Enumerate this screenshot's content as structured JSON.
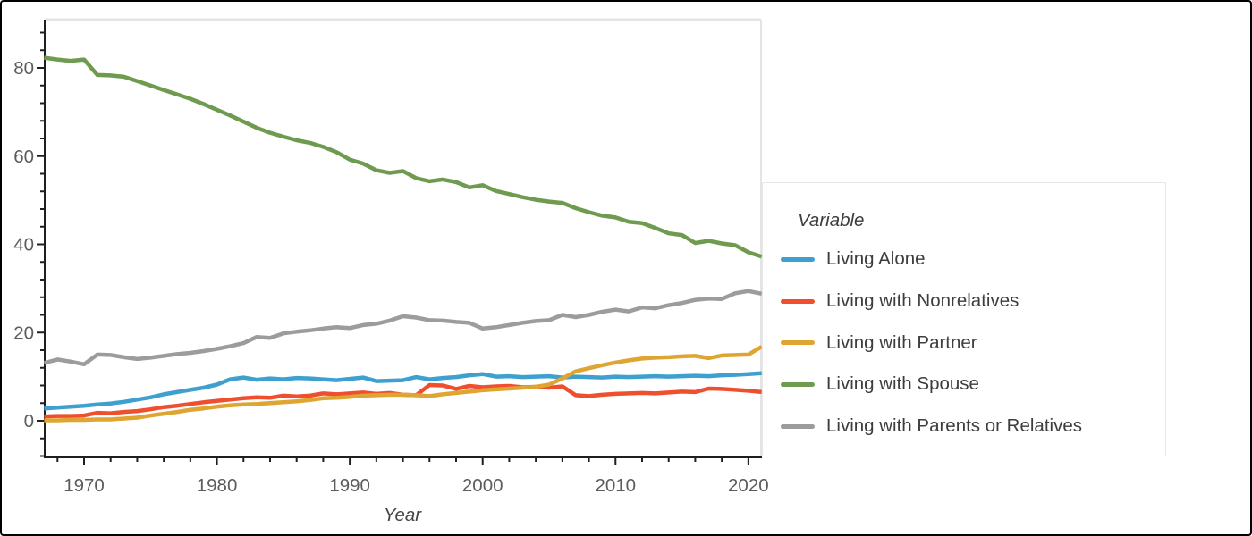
{
  "window": {
    "background": "#ffffff",
    "frame_color": "#000000"
  },
  "chart_data": {
    "type": "line",
    "title": "",
    "xlabel": "Year",
    "ylabel": "",
    "legend_title": "Variable",
    "legend_position": "right",
    "grid": false,
    "x_domain": [
      1967,
      2021
    ],
    "y_domain_display": [
      -8,
      91
    ],
    "x_major_ticks": [
      1970,
      1980,
      1990,
      2000,
      2010,
      2020
    ],
    "x_minor_tick_step_years": 2,
    "y_major_ticks": [
      0,
      20,
      40,
      60,
      80
    ],
    "y_minor_tick_step": 4,
    "axis_color": "#1f1f1f",
    "tick_label_color": "#5c5c5c",
    "plot_border_color": "#e4e4e4",
    "years": [
      1967,
      1968,
      1969,
      1970,
      1971,
      1972,
      1973,
      1974,
      1975,
      1976,
      1977,
      1978,
      1979,
      1980,
      1981,
      1982,
      1983,
      1984,
      1985,
      1986,
      1987,
      1988,
      1989,
      1990,
      1991,
      1992,
      1993,
      1994,
      1995,
      1996,
      1997,
      1998,
      1999,
      2000,
      2001,
      2002,
      2003,
      2004,
      2005,
      2006,
      2007,
      2008,
      2009,
      2010,
      2011,
      2012,
      2013,
      2014,
      2015,
      2016,
      2017,
      2018,
      2019,
      2020,
      2021
    ],
    "series": [
      {
        "name": "Living Alone",
        "color": "#3da0ce",
        "values": [
          2.8,
          3.0,
          3.2,
          3.4,
          3.7,
          3.9,
          4.3,
          4.8,
          5.3,
          6.0,
          6.5,
          7.0,
          7.5,
          8.2,
          9.4,
          9.8,
          9.3,
          9.6,
          9.4,
          9.7,
          9.6,
          9.4,
          9.2,
          9.5,
          9.8,
          9.0,
          9.1,
          9.2,
          9.9,
          9.4,
          9.7,
          9.9,
          10.3,
          10.6,
          10.0,
          10.1,
          9.9,
          10.0,
          10.1,
          9.8,
          10.0,
          9.9,
          9.8,
          10.0,
          9.9,
          10.0,
          10.1,
          10.0,
          10.1,
          10.2,
          10.1,
          10.3,
          10.4,
          10.6,
          10.8
        ]
      },
      {
        "name": "Living with Nonrelatives",
        "color": "#f04f2f",
        "values": [
          1.0,
          1.1,
          1.1,
          1.2,
          1.8,
          1.7,
          2.0,
          2.2,
          2.6,
          3.1,
          3.4,
          3.8,
          4.2,
          4.5,
          4.8,
          5.1,
          5.3,
          5.2,
          5.7,
          5.5,
          5.7,
          6.2,
          6.0,
          6.2,
          6.4,
          6.1,
          6.3,
          5.9,
          5.8,
          8.1,
          8.0,
          7.2,
          7.9,
          7.6,
          7.8,
          7.9,
          7.6,
          7.7,
          7.5,
          7.8,
          5.8,
          5.6,
          5.9,
          6.1,
          6.2,
          6.3,
          6.2,
          6.4,
          6.6,
          6.5,
          7.3,
          7.2,
          7.0,
          6.8,
          6.5
        ]
      },
      {
        "name": "Living with Partner",
        "color": "#dfa532",
        "values": [
          0.1,
          0.1,
          0.2,
          0.2,
          0.3,
          0.3,
          0.5,
          0.7,
          1.2,
          1.6,
          2.0,
          2.5,
          2.8,
          3.2,
          3.5,
          3.7,
          3.8,
          4.0,
          4.2,
          4.4,
          4.7,
          5.1,
          5.2,
          5.4,
          5.7,
          5.8,
          5.9,
          5.9,
          5.8,
          5.6,
          6.0,
          6.3,
          6.6,
          6.9,
          7.1,
          7.3,
          7.5,
          7.7,
          8.2,
          9.6,
          11.2,
          11.9,
          12.6,
          13.2,
          13.7,
          14.1,
          14.3,
          14.4,
          14.6,
          14.7,
          14.2,
          14.8,
          14.9,
          15.0,
          16.8
        ]
      },
      {
        "name": "Living with Spouse",
        "color": "#6f9b50",
        "values": [
          82.3,
          81.9,
          81.6,
          81.9,
          78.4,
          78.3,
          78.0,
          77.0,
          76.0,
          75.0,
          74.0,
          73.0,
          71.8,
          70.5,
          69.2,
          67.8,
          66.4,
          65.3,
          64.4,
          63.6,
          63.0,
          62.1,
          60.9,
          59.2,
          58.3,
          56.8,
          56.2,
          56.6,
          55.0,
          54.3,
          54.7,
          54.1,
          52.9,
          53.4,
          52.1,
          51.4,
          50.7,
          50.1,
          49.7,
          49.4,
          48.2,
          47.3,
          46.5,
          46.1,
          45.1,
          44.8,
          43.7,
          42.5,
          42.1,
          40.3,
          40.8,
          40.2,
          39.8,
          38.2,
          37.2
        ]
      },
      {
        "name": "Living with Parents or Relatives",
        "color": "#9c9c9c",
        "values": [
          13.1,
          13.9,
          13.4,
          12.8,
          15.0,
          14.9,
          14.4,
          14.0,
          14.3,
          14.7,
          15.1,
          15.4,
          15.8,
          16.3,
          16.9,
          17.6,
          19.0,
          18.8,
          19.8,
          20.2,
          20.5,
          20.9,
          21.2,
          21.0,
          21.7,
          22.0,
          22.7,
          23.7,
          23.4,
          22.8,
          22.7,
          22.4,
          22.2,
          20.9,
          21.2,
          21.7,
          22.2,
          22.6,
          22.8,
          24.0,
          23.5,
          24.0,
          24.7,
          25.2,
          24.8,
          25.7,
          25.5,
          26.2,
          26.7,
          27.4,
          27.7,
          27.6,
          28.9,
          29.4,
          28.8
        ]
      }
    ]
  }
}
